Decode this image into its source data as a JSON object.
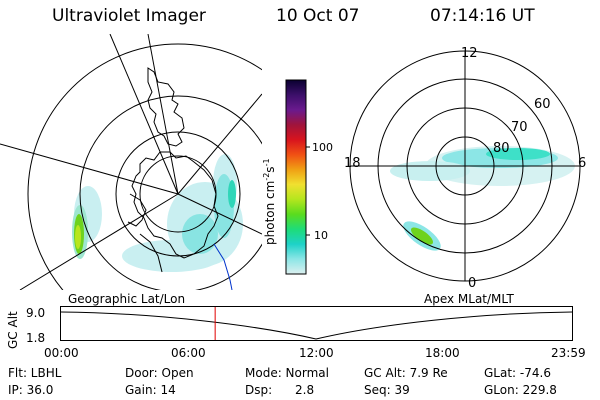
{
  "header": {
    "instrument": "Ultraviolet Imager",
    "date": "10 Oct 07",
    "time": "07:14:16 UT"
  },
  "colorbar": {
    "unit": "photon cm",
    "unit_sup1": "-2",
    "unit_mid": "s",
    "unit_sup2": "-1",
    "ticks": [
      "100",
      "10"
    ],
    "ramp": [
      "#0a0030",
      "#3c0f6a",
      "#6a1a8e",
      "#a0143c",
      "#d8141e",
      "#f05014",
      "#f0a014",
      "#f0e030",
      "#b4e61e",
      "#5adc1e",
      "#1edc78",
      "#1ed2c8",
      "#8ce6e6",
      "#dcf0f0"
    ]
  },
  "polar_plot": {
    "mlt_labels": {
      "top": "12",
      "left": "18",
      "right": "6",
      "bottom": "0"
    },
    "lat_labels": [
      "60",
      "70",
      "80"
    ]
  },
  "map_labels": {
    "left": "Geographic Lat/Lon",
    "right": "Apex MLat/MLT"
  },
  "altitude_plot": {
    "ylabel": "GC Alt",
    "yticks": [
      "9.0",
      "1.8"
    ],
    "xticks": [
      "00:00",
      "06:00",
      "12:00",
      "18:00",
      "23:59"
    ],
    "current_time_hours": 7.24
  },
  "status": {
    "filter": "Flt: LBHL",
    "ip": "IP: 36.0",
    "door": "Door: Open",
    "gain": "Gain: 14",
    "mode": "Mode: Normal",
    "dsp_label": "Dsp:",
    "dsp_value": "2.8",
    "gc_alt": "GC Alt: 7.9 Re",
    "seq": "Seq: 39",
    "glat": "GLat: -74.6",
    "glon": "GLon: 229.8"
  },
  "colors": {
    "marker": "#e00000",
    "auroral_green": "#6ed21e",
    "auroral_cyan": "#3ee0c8",
    "diffuse": "#bfeff0"
  }
}
